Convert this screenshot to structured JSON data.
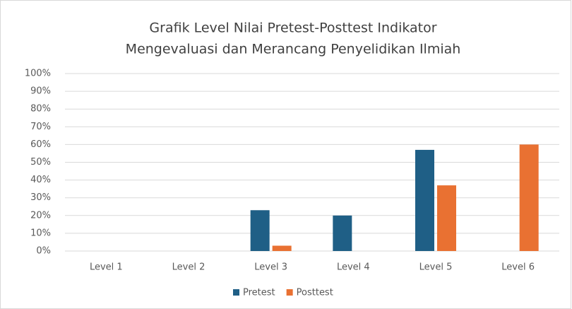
{
  "chart_data": {
    "type": "bar",
    "title": [
      "Grafik Level Nilai Pretest-Posttest Indikator",
      "Mengevaluasi dan Merancang Penyelidikan Ilmiah"
    ],
    "categories": [
      "Level 1",
      "Level 2",
      "Level 3",
      "Level 4",
      "Level 5",
      "Level 6"
    ],
    "series": [
      {
        "name": "Pretest",
        "color": "#1f5f86",
        "values": [
          0,
          0,
          23,
          20,
          57,
          0
        ]
      },
      {
        "name": "Posttest",
        "color": "#e97132",
        "values": [
          0,
          0,
          3,
          0,
          37,
          60
        ]
      }
    ],
    "ylim": [
      0,
      100
    ],
    "yticks": [
      {
        "value": 0,
        "label": "0%"
      },
      {
        "value": 10,
        "label": "10%"
      },
      {
        "value": 20,
        "label": "20%"
      },
      {
        "value": 30,
        "label": "30%"
      },
      {
        "value": 40,
        "label": "40%"
      },
      {
        "value": 50,
        "label": "50%"
      },
      {
        "value": 60,
        "label": "60%"
      },
      {
        "value": 70,
        "label": "70%"
      },
      {
        "value": 80,
        "label": "80%"
      },
      {
        "value": 90,
        "label": "90%"
      },
      {
        "value": 100,
        "label": "100%"
      }
    ],
    "grid": true,
    "legend": "bottom"
  }
}
